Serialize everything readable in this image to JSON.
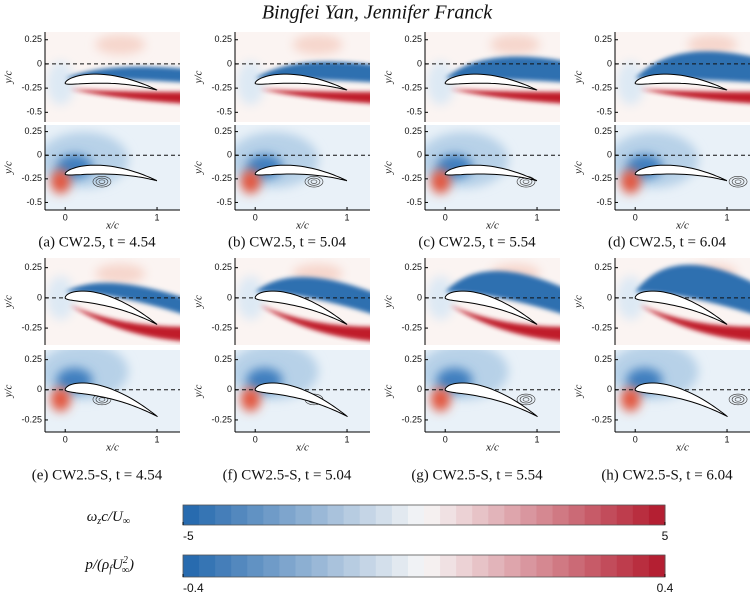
{
  "header": {
    "title": "Bingfei Yan, Jennifer Franck"
  },
  "groups": [
    {
      "vorticity_axes": {
        "ylabel": "y/c",
        "xlim": [
          -0.22,
          1.25
        ],
        "ylim": [
          -0.6,
          0.33
        ],
        "yticks": [
          0.25,
          0,
          -0.25,
          -0.5
        ]
      },
      "pressure_axes": {
        "ylabel": "y/c",
        "xlabel": "x/c",
        "xlim": [
          -0.22,
          1.25
        ],
        "ylim": [
          -0.58,
          0.32
        ],
        "yticks": [
          0.25,
          0,
          -0.25,
          -0.5
        ],
        "xticks": [
          0,
          1
        ]
      },
      "captions": [
        "(a) CW2.5, t = 4.54",
        "(b) CW2.5, t = 5.04",
        "(c) CW2.5, t = 5.54",
        "(d) CW2.5, t = 6.04"
      ]
    },
    {
      "vorticity_axes": {
        "ylabel": "y/c",
        "xlim": [
          -0.22,
          1.25
        ],
        "ylim": [
          -0.39,
          0.33
        ],
        "yticks": [
          0.25,
          0,
          -0.25
        ]
      },
      "pressure_axes": {
        "ylabel": "y/c",
        "xlabel": "x/c",
        "xlim": [
          -0.22,
          1.25
        ],
        "ylim": [
          -0.35,
          0.33
        ],
        "yticks": [
          0.25,
          0,
          -0.25
        ],
        "xticks": [
          0,
          1
        ]
      },
      "captions": [
        "(e) CW2.5-S, t = 4.54",
        "(f) CW2.5-S, t = 5.04",
        "(g) CW2.5-S, t = 5.54",
        "(h) CW2.5-S, t = 6.04"
      ]
    }
  ],
  "colorbars": [
    {
      "label": [
        "ω",
        "z",
        "c/U",
        "∞"
      ],
      "lim": [
        -5,
        5
      ],
      "ticks": [
        -5,
        5
      ]
    },
    {
      "label": [
        "p/(ρ",
        "f",
        "U",
        "2",
        "∞",
        ")"
      ],
      "lim": [
        -0.4,
        0.4
      ],
      "ticks": [
        -0.4,
        0.4
      ]
    }
  ]
}
